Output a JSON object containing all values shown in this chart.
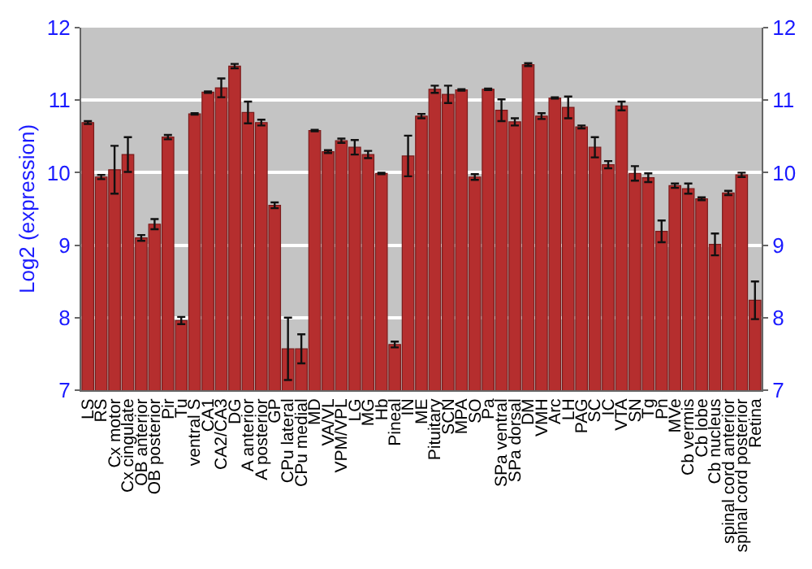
{
  "chart_data": {
    "type": "bar",
    "ylabel": "Log2 (expression)",
    "categories": [
      "LS",
      "RS",
      "Cx motor",
      "Cx cingulate",
      "OB anterior",
      "OB posterior",
      "Pir",
      "Tu",
      "ventral S",
      "CA1",
      "CA2/CA3",
      "DG",
      "A anterior",
      "A posterior",
      "GP",
      "CPu lateral",
      "CPu medial",
      "MD",
      "VA/VL",
      "VPM/VPL",
      "LG",
      "MG",
      "Hb",
      "Pineal",
      "IN",
      "ME",
      "Pituitary",
      "SCN",
      "MPA",
      "SO",
      "Pa",
      "SPa ventral",
      "SPa dorsal",
      "DM",
      "VMH",
      "Arc",
      "LH",
      "PAG",
      "SC",
      "IC",
      "VTA",
      "SN",
      "Tg",
      "Pn",
      "MVe",
      "Cb vermis",
      "Cb lobe",
      "Cb nucleus",
      "spinal cord anterior",
      "spinal cord posterior",
      "Retina"
    ],
    "series": [
      {
        "color": "#b52e2e",
        "values": [
          10.69,
          9.94,
          10.04,
          10.25,
          9.1,
          9.29,
          10.49,
          7.96,
          10.81,
          11.11,
          11.17,
          11.47,
          10.83,
          10.69,
          9.55,
          7.57,
          7.57,
          10.58,
          10.29,
          10.44,
          10.35,
          10.25,
          9.99,
          7.63,
          10.23,
          10.78,
          11.15,
          11.08,
          11.14,
          9.94,
          11.15,
          10.86,
          10.7,
          11.49,
          10.78,
          11.03,
          10.9,
          10.63,
          10.35,
          10.11,
          10.92,
          9.99,
          9.93,
          9.19,
          9.82,
          9.78,
          9.64,
          9.01,
          9.72,
          9.97,
          8.24
        ],
        "errors": [
          0.02,
          0.03,
          0.33,
          0.24,
          0.04,
          0.07,
          0.03,
          0.05,
          0.01,
          0.01,
          0.13,
          0.03,
          0.15,
          0.04,
          0.04,
          0.43,
          0.2,
          0.01,
          0.02,
          0.03,
          0.1,
          0.05,
          0.01,
          0.04,
          0.28,
          0.03,
          0.05,
          0.12,
          0.01,
          0.04,
          0.01,
          0.15,
          0.05,
          0.02,
          0.04,
          0.01,
          0.15,
          0.02,
          0.14,
          0.05,
          0.06,
          0.1,
          0.06,
          0.15,
          0.03,
          0.07,
          0.02,
          0.15,
          0.03,
          0.03,
          0.26
        ]
      }
    ],
    "ylim": [
      7,
      12
    ],
    "yticks": [
      7,
      8,
      9,
      10,
      11,
      12
    ],
    "y2lim": [
      7,
      12
    ],
    "y2ticks": [
      7,
      8,
      9,
      10,
      11,
      12
    ],
    "grid": "y"
  }
}
